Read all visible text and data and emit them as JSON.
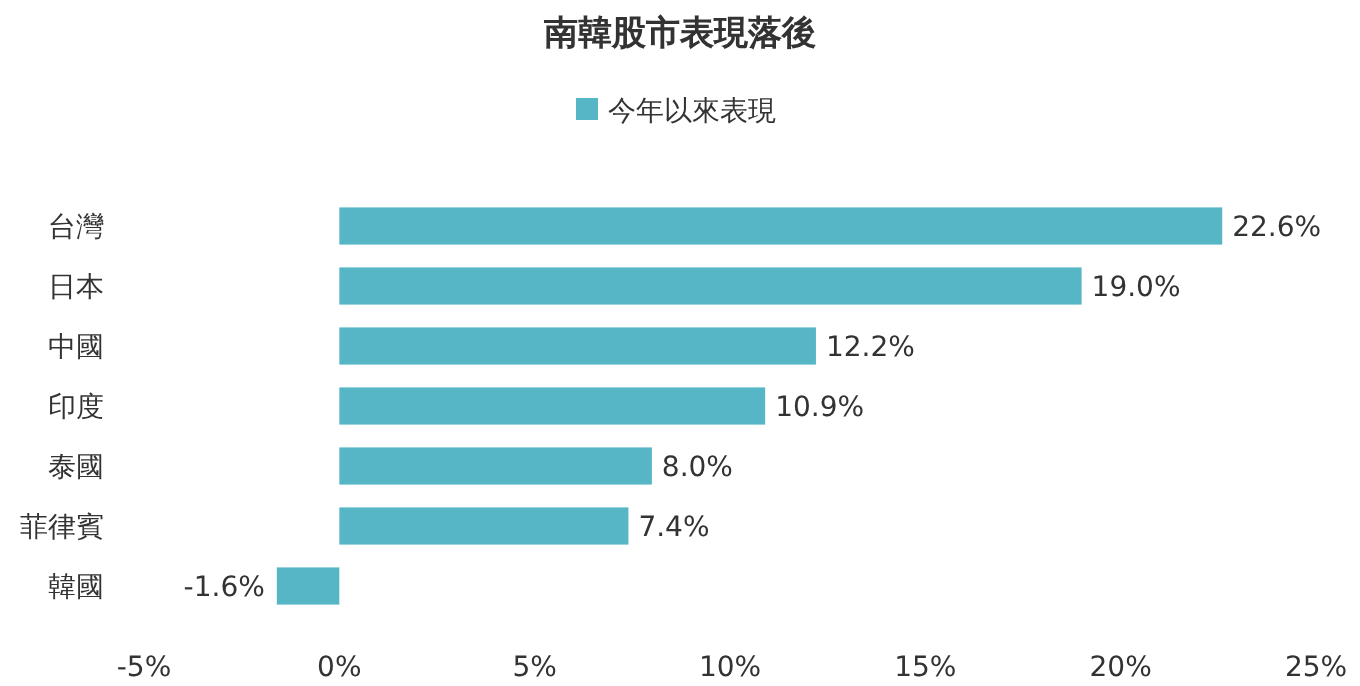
{
  "chart_data": {
    "type": "bar",
    "orientation": "horizontal",
    "title": "南韓股市表現落後",
    "legend": "top",
    "grid": false,
    "categories": [
      "台灣",
      "日本",
      "中國",
      "印度",
      "泰國",
      "菲律賓",
      "韓國"
    ],
    "series": [
      {
        "name": "今年以來表現",
        "color": "#56b6c6",
        "values": [
          22.6,
          19.0,
          12.2,
          10.9,
          8.0,
          7.4,
          -1.6
        ],
        "value_labels": [
          "22.6%",
          "19.0%",
          "12.2%",
          "10.9%",
          "8.0%",
          "7.4%",
          "-1.6%"
        ]
      }
    ],
    "xlim": [
      -5,
      25
    ],
    "xticks": [
      {
        "value": -5,
        "label": "-5%"
      },
      {
        "value": 0,
        "label": "0%"
      },
      {
        "value": 5,
        "label": "5%"
      },
      {
        "value": 10,
        "label": "10%"
      },
      {
        "value": 15,
        "label": "15%"
      },
      {
        "value": 20,
        "label": "20%"
      },
      {
        "value": 25,
        "label": "25%"
      }
    ]
  }
}
